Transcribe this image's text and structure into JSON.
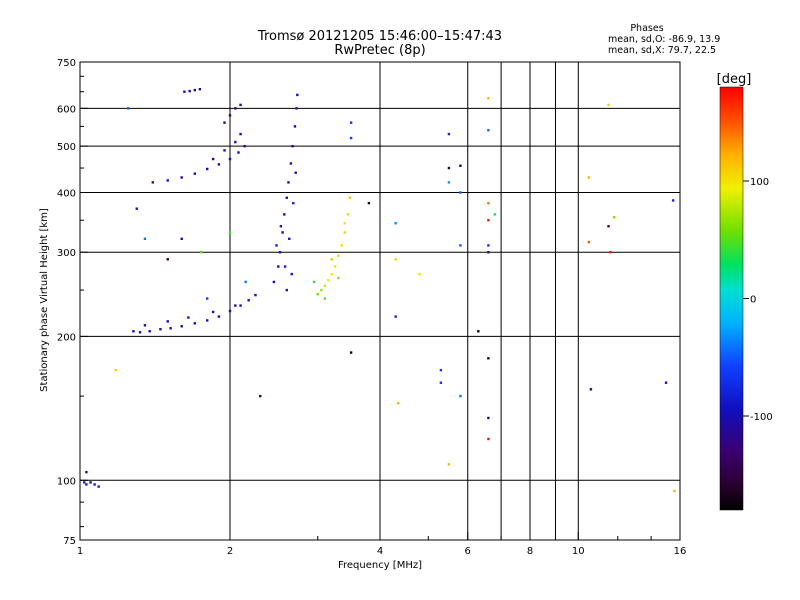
{
  "header": {
    "title_line1": "Tromsø 20121205 15:46:00–15:47:43",
    "title_line2": "RwPretec (8p)",
    "stats_title": "Phases",
    "stats_line1": "mean, sd,O: -86.9, 13.9",
    "stats_line2": "mean, sd,X:  79.7, 22.5"
  },
  "colorbar": {
    "label": "[deg]",
    "ticks": [
      {
        "value": 100,
        "label": "100"
      },
      {
        "value": 0,
        "label": "0"
      },
      {
        "value": -100,
        "label": "-100"
      }
    ],
    "range": [
      -180,
      180
    ]
  },
  "chart_data": {
    "type": "scatter",
    "xlabel": "Frequency [MHz]",
    "ylabel": "Stationary phase Virtual Height [km]",
    "x_scale": "log",
    "y_scale": "log",
    "xlim": [
      1,
      16
    ],
    "ylim": [
      75,
      750
    ],
    "x_ticks": [
      {
        "value": 1,
        "label": "1"
      },
      {
        "value": 2,
        "label": "2"
      },
      {
        "value": 4,
        "label": "4"
      },
      {
        "value": 6,
        "label": "6"
      },
      {
        "value": 8,
        "label": "8"
      },
      {
        "value": 10,
        "label": "10"
      },
      {
        "value": 16,
        "label": "16"
      }
    ],
    "x_gridlines": [
      2,
      4,
      6,
      8,
      10
    ],
    "y_ticks": [
      {
        "value": 75,
        "label": "75"
      },
      {
        "value": 100,
        "label": "100"
      },
      {
        "value": 200,
        "label": "200"
      },
      {
        "value": 300,
        "label": "300"
      },
      {
        "value": 400,
        "label": "400"
      },
      {
        "value": 500,
        "label": "500"
      },
      {
        "value": 600,
        "label": "600"
      },
      {
        "value": 750,
        "label": "750"
      }
    ],
    "y_gridlines": [
      100,
      200,
      300,
      400,
      500,
      600
    ],
    "grid": true,
    "points": [
      {
        "x": 1.02,
        "y": 99,
        "p": -85
      },
      {
        "x": 1.03,
        "y": 98,
        "p": -80
      },
      {
        "x": 1.05,
        "y": 99,
        "p": -88
      },
      {
        "x": 1.07,
        "y": 98,
        "p": -84
      },
      {
        "x": 1.09,
        "y": 97,
        "p": -86
      },
      {
        "x": 1.03,
        "y": 104,
        "p": -95
      },
      {
        "x": 1.28,
        "y": 205,
        "p": -98
      },
      {
        "x": 1.32,
        "y": 204,
        "p": -100
      },
      {
        "x": 1.38,
        "y": 205,
        "p": -96
      },
      {
        "x": 1.45,
        "y": 207,
        "p": -102
      },
      {
        "x": 1.52,
        "y": 208,
        "p": -99
      },
      {
        "x": 1.6,
        "y": 210,
        "p": -97
      },
      {
        "x": 1.7,
        "y": 213,
        "p": -100
      },
      {
        "x": 1.8,
        "y": 216,
        "p": -95
      },
      {
        "x": 1.9,
        "y": 220,
        "p": -98
      },
      {
        "x": 2.0,
        "y": 226,
        "p": -94
      },
      {
        "x": 2.1,
        "y": 232,
        "p": -96
      },
      {
        "x": 2.18,
        "y": 238,
        "p": -90
      },
      {
        "x": 2.25,
        "y": 244,
        "p": -92
      },
      {
        "x": 1.35,
        "y": 211,
        "p": -110
      },
      {
        "x": 1.5,
        "y": 215,
        "p": -105
      },
      {
        "x": 1.65,
        "y": 219,
        "p": -107
      },
      {
        "x": 1.85,
        "y": 225,
        "p": -104
      },
      {
        "x": 2.05,
        "y": 232,
        "p": -100
      },
      {
        "x": 1.4,
        "y": 420,
        "p": -100
      },
      {
        "x": 1.5,
        "y": 424,
        "p": -98
      },
      {
        "x": 1.6,
        "y": 430,
        "p": -102
      },
      {
        "x": 1.7,
        "y": 438,
        "p": -97
      },
      {
        "x": 1.8,
        "y": 448,
        "p": -99
      },
      {
        "x": 1.9,
        "y": 458,
        "p": -95
      },
      {
        "x": 2.0,
        "y": 470,
        "p": -97
      },
      {
        "x": 2.08,
        "y": 485,
        "p": -93
      },
      {
        "x": 2.14,
        "y": 500,
        "p": -95
      },
      {
        "x": 1.85,
        "y": 470,
        "p": -105
      },
      {
        "x": 1.95,
        "y": 490,
        "p": -103
      },
      {
        "x": 2.05,
        "y": 510,
        "p": -101
      },
      {
        "x": 2.1,
        "y": 530,
        "p": -99
      },
      {
        "x": 1.62,
        "y": 650,
        "p": -110
      },
      {
        "x": 1.66,
        "y": 652,
        "p": -108
      },
      {
        "x": 1.7,
        "y": 655,
        "p": -112
      },
      {
        "x": 1.74,
        "y": 658,
        "p": -109
      },
      {
        "x": 1.95,
        "y": 560,
        "p": -115
      },
      {
        "x": 2.0,
        "y": 580,
        "p": -118
      },
      {
        "x": 2.05,
        "y": 600,
        "p": -120
      },
      {
        "x": 2.1,
        "y": 610,
        "p": -117
      },
      {
        "x": 2.45,
        "y": 260,
        "p": -100
      },
      {
        "x": 2.5,
        "y": 280,
        "p": -102
      },
      {
        "x": 2.52,
        "y": 300,
        "p": -95
      },
      {
        "x": 2.55,
        "y": 330,
        "p": -97
      },
      {
        "x": 2.57,
        "y": 360,
        "p": -99
      },
      {
        "x": 2.6,
        "y": 390,
        "p": -92
      },
      {
        "x": 2.62,
        "y": 420,
        "p": -96
      },
      {
        "x": 2.65,
        "y": 460,
        "p": -101
      },
      {
        "x": 2.67,
        "y": 500,
        "p": -98
      },
      {
        "x": 2.7,
        "y": 550,
        "p": -104
      },
      {
        "x": 2.72,
        "y": 600,
        "p": -100
      },
      {
        "x": 2.73,
        "y": 640,
        "p": -95
      },
      {
        "x": 2.48,
        "y": 310,
        "p": -80
      },
      {
        "x": 2.53,
        "y": 340,
        "p": -85
      },
      {
        "x": 2.58,
        "y": 280,
        "p": -90
      },
      {
        "x": 2.63,
        "y": 320,
        "p": -88
      },
      {
        "x": 2.68,
        "y": 380,
        "p": -84
      },
      {
        "x": 2.71,
        "y": 440,
        "p": -110
      },
      {
        "x": 2.66,
        "y": 270,
        "p": -93
      },
      {
        "x": 2.6,
        "y": 250,
        "p": -96
      },
      {
        "x": 3.0,
        "y": 245,
        "p": 60
      },
      {
        "x": 3.05,
        "y": 250,
        "p": 70
      },
      {
        "x": 3.1,
        "y": 255,
        "p": 80
      },
      {
        "x": 3.15,
        "y": 262,
        "p": 90
      },
      {
        "x": 3.2,
        "y": 270,
        "p": 95
      },
      {
        "x": 3.25,
        "y": 280,
        "p": 100
      },
      {
        "x": 3.3,
        "y": 295,
        "p": 105
      },
      {
        "x": 3.35,
        "y": 310,
        "p": 102
      },
      {
        "x": 3.4,
        "y": 330,
        "p": 110
      },
      {
        "x": 3.45,
        "y": 360,
        "p": 108
      },
      {
        "x": 3.48,
        "y": 390,
        "p": 112
      },
      {
        "x": 2.95,
        "y": 260,
        "p": 40
      },
      {
        "x": 3.1,
        "y": 240,
        "p": 55
      },
      {
        "x": 3.2,
        "y": 290,
        "p": 75
      },
      {
        "x": 3.3,
        "y": 265,
        "p": 65
      },
      {
        "x": 3.4,
        "y": 345,
        "p": 95
      },
      {
        "x": 1.18,
        "y": 170,
        "p": 110
      },
      {
        "x": 1.25,
        "y": 600,
        "p": -50
      },
      {
        "x": 1.3,
        "y": 370,
        "p": -90
      },
      {
        "x": 1.35,
        "y": 320,
        "p": -40
      },
      {
        "x": 1.5,
        "y": 290,
        "p": -150
      },
      {
        "x": 1.6,
        "y": 320,
        "p": -110
      },
      {
        "x": 1.75,
        "y": 300,
        "p": 50
      },
      {
        "x": 1.8,
        "y": 240,
        "p": -60
      },
      {
        "x": 2.0,
        "y": 330,
        "p": 45
      },
      {
        "x": 2.3,
        "y": 150,
        "p": -150
      },
      {
        "x": 2.15,
        "y": 260,
        "p": -40
      },
      {
        "x": 3.5,
        "y": 560,
        "p": -70
      },
      {
        "x": 3.5,
        "y": 520,
        "p": -60
      },
      {
        "x": 3.5,
        "y": 185,
        "p": -170
      },
      {
        "x": 3.8,
        "y": 380,
        "p": -160
      },
      {
        "x": 4.3,
        "y": 345,
        "p": -30
      },
      {
        "x": 4.3,
        "y": 290,
        "p": 80
      },
      {
        "x": 4.3,
        "y": 220,
        "p": -80
      },
      {
        "x": 4.35,
        "y": 145,
        "p": 120
      },
      {
        "x": 4.8,
        "y": 270,
        "p": 100
      },
      {
        "x": 5.3,
        "y": 170,
        "p": -60
      },
      {
        "x": 5.3,
        "y": 160,
        "p": -70
      },
      {
        "x": 5.5,
        "y": 530,
        "p": -80
      },
      {
        "x": 5.5,
        "y": 450,
        "p": -150
      },
      {
        "x": 5.5,
        "y": 420,
        "p": -30
      },
      {
        "x": 5.5,
        "y": 108,
        "p": 120
      },
      {
        "x": 5.8,
        "y": 455,
        "p": -160
      },
      {
        "x": 5.8,
        "y": 400,
        "p": -50
      },
      {
        "x": 5.8,
        "y": 310,
        "p": -50
      },
      {
        "x": 5.8,
        "y": 150,
        "p": -40
      },
      {
        "x": 6.3,
        "y": 205,
        "p": -170
      },
      {
        "x": 6.6,
        "y": 630,
        "p": 120
      },
      {
        "x": 6.6,
        "y": 540,
        "p": -40
      },
      {
        "x": 6.6,
        "y": 380,
        "p": 140
      },
      {
        "x": 6.6,
        "y": 350,
        "p": 170
      },
      {
        "x": 6.6,
        "y": 310,
        "p": -70
      },
      {
        "x": 6.6,
        "y": 300,
        "p": -120
      },
      {
        "x": 6.6,
        "y": 180,
        "p": -150
      },
      {
        "x": 6.6,
        "y": 135,
        "p": -110
      },
      {
        "x": 6.6,
        "y": 122,
        "p": 175
      },
      {
        "x": 6.8,
        "y": 360,
        "p": 40
      },
      {
        "x": 10.5,
        "y": 430,
        "p": 120
      },
      {
        "x": 10.5,
        "y": 315,
        "p": 150
      },
      {
        "x": 10.6,
        "y": 155,
        "p": -120
      },
      {
        "x": 11.5,
        "y": 610,
        "p": 110
      },
      {
        "x": 11.5,
        "y": 340,
        "p": -140
      },
      {
        "x": 11.6,
        "y": 300,
        "p": 175
      },
      {
        "x": 11.8,
        "y": 355,
        "p": 60
      },
      {
        "x": 15.0,
        "y": 160,
        "p": -100
      },
      {
        "x": 15.5,
        "y": 385,
        "p": -80
      },
      {
        "x": 15.6,
        "y": 95,
        "p": 120
      }
    ]
  }
}
